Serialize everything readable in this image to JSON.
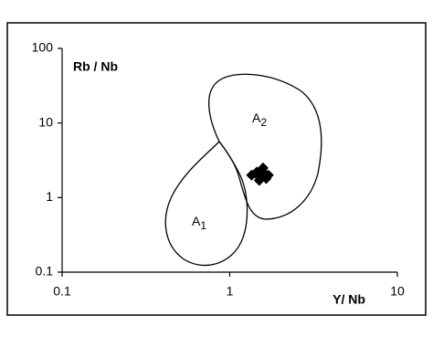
{
  "chart_data": {
    "type": "scatter",
    "x_label": "Y/ Nb",
    "y_label": "Rb / Nb",
    "xlim": [
      0.1,
      10
    ],
    "ylim": [
      0.1,
      100
    ],
    "xticks": [
      0.1,
      1,
      10
    ],
    "yticks": [
      0.1,
      1,
      10,
      100
    ],
    "xscale": "log",
    "yscale": "log",
    "grid": false,
    "color": "#000000",
    "x": [
      1.35,
      1.45,
      1.5,
      1.55,
      1.6,
      1.65,
      1.7,
      1.5,
      1.58
    ],
    "values": [
      2.0,
      2.2,
      1.9,
      2.35,
      2.1,
      1.8,
      2.0,
      1.7,
      2.5
    ],
    "regions": [
      {
        "label": "A",
        "subscript": "1"
      },
      {
        "label": "A",
        "subscript": "2"
      }
    ]
  }
}
